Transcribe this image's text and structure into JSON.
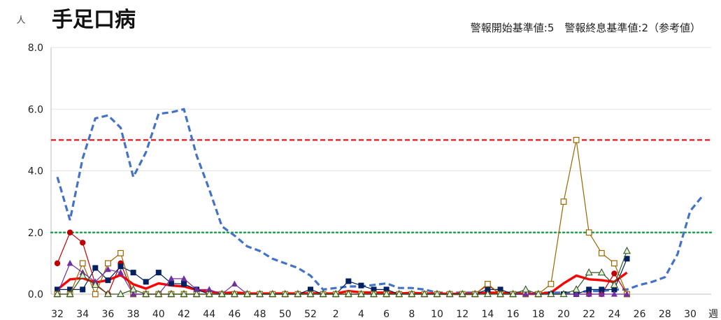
{
  "chart_data": {
    "type": "line",
    "title": "手足口病",
    "subtitle": "警報開始基準値:5　警報終息基準値:2（参考値）",
    "ylabel": "人",
    "xlabel": "週",
    "ylim": [
      0,
      8
    ],
    "yticks": [
      "0.0",
      "2.0",
      "4.0",
      "6.0",
      "8.0"
    ],
    "x_tick_labels": [
      "32",
      "34",
      "36",
      "38",
      "40",
      "42",
      "44",
      "46",
      "48",
      "50",
      "52",
      "2",
      "4",
      "6",
      "8",
      "10",
      "12",
      "14",
      "16",
      "18",
      "20",
      "22",
      "24",
      "26",
      "28",
      "30"
    ],
    "weeks": [
      32,
      33,
      34,
      35,
      36,
      37,
      38,
      39,
      40,
      41,
      42,
      43,
      44,
      45,
      46,
      47,
      48,
      49,
      50,
      51,
      52,
      1,
      2,
      3,
      4,
      5,
      6,
      7,
      8,
      9,
      10,
      11,
      12,
      13,
      14,
      15,
      16,
      17,
      18,
      19,
      20,
      21,
      22,
      23,
      24,
      25,
      26,
      27,
      28,
      29,
      30,
      31
    ],
    "reference_lines": [
      {
        "value": 5,
        "color": "#e8141a",
        "style": "dashed"
      },
      {
        "value": 2,
        "color": "#1fa04a",
        "style": "dotted"
      }
    ],
    "series": [
      {
        "color": "#4472c4",
        "style": "dashed-thick",
        "values": [
          3.8,
          2.4,
          4.4,
          5.7,
          5.8,
          5.4,
          3.8,
          4.6,
          5.85,
          5.9,
          6.0,
          4.5,
          3.4,
          2.2,
          1.9,
          1.55,
          1.4,
          1.15,
          1.0,
          0.85,
          0.6,
          0.15,
          0.2,
          0.25,
          0.25,
          0.3,
          0.35,
          0.2,
          0.2,
          0.15,
          0.05,
          0.05,
          0.05,
          0.05,
          0.05,
          0.05,
          0.05,
          0.05,
          0.05,
          0.05,
          0.05,
          0.05,
          0.1,
          0.1,
          0.15,
          0.15,
          0.3,
          0.4,
          0.55,
          1.3,
          2.7,
          3.2
        ]
      },
      {
        "color": "#ff0000",
        "style": "solid-thick",
        "values": [
          0.15,
          0.48,
          0.52,
          0.38,
          0.45,
          0.62,
          0.32,
          0.18,
          0.35,
          0.28,
          0.25,
          0.14,
          0.08,
          0.03,
          0.06,
          0.02,
          0.02,
          0.02,
          0.02,
          0.02,
          0.03,
          0.02,
          0.02,
          0.1,
          0.06,
          0.05,
          0.05,
          0.02,
          0.04,
          0.02,
          0.02,
          0.01,
          0.01,
          0.01,
          0.05,
          0.04,
          0.02,
          0.01,
          0.01,
          0.05,
          0.35,
          0.6,
          0.48,
          0.45,
          0.4,
          0.7
        ]
      },
      {
        "color": "#c00000",
        "marker": "circle",
        "values": [
          1.0,
          2.0,
          1.67,
          0.33,
          0.0,
          1.0,
          0.0,
          0.0,
          0.0,
          0.0,
          0.0,
          0.0,
          0.0,
          0.0,
          0.0,
          0.0,
          0.0,
          0.0,
          0.0,
          0.0,
          0.0,
          0.0,
          0.0,
          0.0,
          0.0,
          0.0,
          0.0,
          0.0,
          0.0,
          0.0,
          0.0,
          0.0,
          0.0,
          0.0,
          0.3,
          0.0,
          0.0,
          0.0,
          0.0,
          0.0,
          0.0,
          0.0,
          0.0,
          0.0,
          0.67,
          0.0
        ]
      },
      {
        "color": "#002060",
        "marker": "square",
        "values": [
          0.15,
          0.15,
          0.15,
          0.85,
          0.45,
          0.9,
          0.7,
          0.4,
          0.7,
          0.35,
          0.33,
          0.15,
          0.0,
          0.0,
          0.0,
          0.0,
          0.0,
          0.0,
          0.0,
          0.0,
          0.15,
          0.0,
          0.0,
          0.42,
          0.28,
          0.15,
          0.15,
          0.0,
          0.0,
          0.0,
          0.0,
          0.0,
          0.0,
          0.0,
          0.15,
          0.15,
          0.0,
          0.0,
          0.0,
          0.0,
          0.0,
          0.0,
          0.15,
          0.15,
          0.15,
          1.15
        ]
      },
      {
        "color": "#9c6500",
        "marker": "open-square",
        "values": [
          0.0,
          0.0,
          1.0,
          0.0,
          1.0,
          1.33,
          0.0,
          0.0,
          0.0,
          0.0,
          0.0,
          0.0,
          0.0,
          0.0,
          0.0,
          0.0,
          0.0,
          0.0,
          0.0,
          0.0,
          0.0,
          0.0,
          0.0,
          0.0,
          0.0,
          0.0,
          0.0,
          0.0,
          0.0,
          0.0,
          0.0,
          0.0,
          0.0,
          0.0,
          0.33,
          0.0,
          0.0,
          0.0,
          0.0,
          0.33,
          3.0,
          5.0,
          2.0,
          1.33,
          1.0,
          0.0
        ]
      },
      {
        "color": "#7030a0",
        "marker": "triangle",
        "values": [
          0.0,
          1.0,
          0.7,
          0.4,
          0.8,
          0.7,
          0.0,
          0.0,
          0.0,
          0.5,
          0.5,
          0.15,
          0.15,
          0.0,
          0.33,
          0.0,
          0.0,
          0.0,
          0.0,
          0.0,
          0.0,
          0.0,
          0.0,
          0.0,
          0.0,
          0.0,
          0.0,
          0.0,
          0.0,
          0.0,
          0.0,
          0.0,
          0.0,
          0.0,
          0.0,
          0.0,
          0.0,
          0.0,
          0.0,
          0.0,
          0.0,
          0.0,
          0.0,
          0.0,
          0.0,
          0.0
        ]
      },
      {
        "color": "#375623",
        "marker": "open-triangle",
        "values": [
          0.0,
          0.0,
          0.6,
          0.3,
          0.0,
          0.0,
          0.15,
          0.0,
          0.0,
          0.0,
          0.0,
          0.0,
          0.0,
          0.0,
          0.0,
          0.0,
          0.0,
          0.0,
          0.0,
          0.0,
          0.0,
          0.0,
          0.0,
          0.0,
          0.0,
          0.0,
          0.0,
          0.0,
          0.0,
          0.0,
          0.0,
          0.0,
          0.0,
          0.0,
          0.0,
          0.0,
          0.0,
          0.15,
          0.0,
          0.0,
          0.0,
          0.15,
          0.7,
          0.7,
          0.3,
          1.4
        ]
      }
    ]
  }
}
